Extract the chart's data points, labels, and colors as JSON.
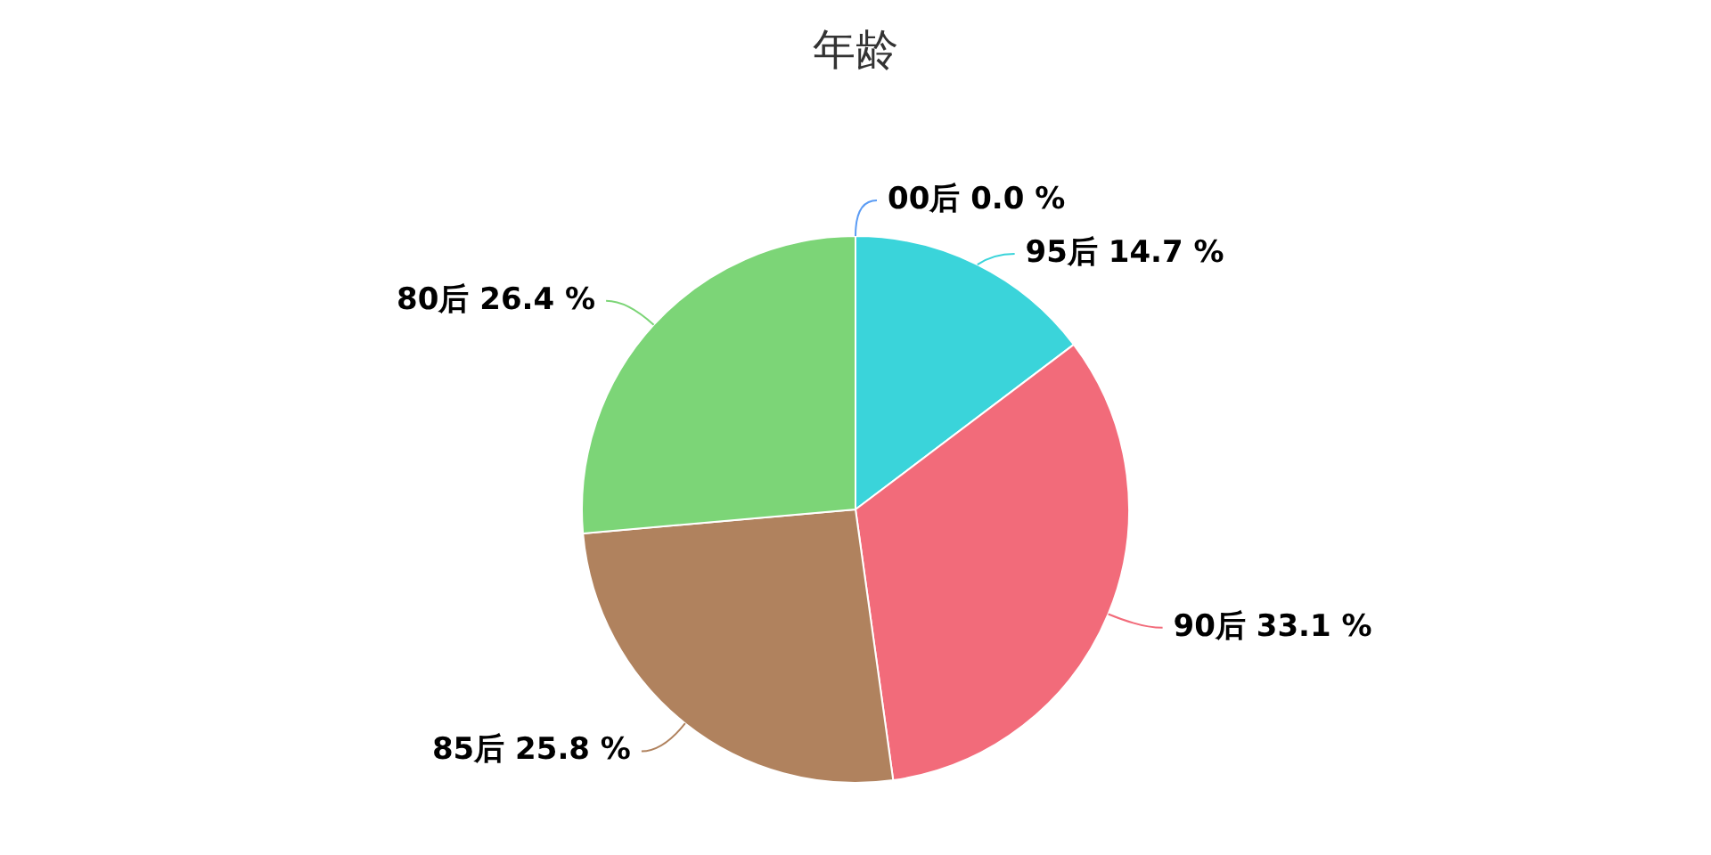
{
  "chart_data": {
    "type": "pie",
    "title": "年龄",
    "categories": [
      "00后",
      "95后",
      "90后",
      "85后",
      "80后"
    ],
    "values": [
      0.0,
      14.7,
      33.1,
      25.8,
      26.4
    ],
    "value_labels": [
      "0.0 %",
      "14.7 %",
      "33.1 %",
      "25.8 %",
      "26.4 %"
    ],
    "colors": [
      "#5b9cf4",
      "#3ad4da",
      "#f26b7a",
      "#b0825e",
      "#7cd577"
    ]
  }
}
